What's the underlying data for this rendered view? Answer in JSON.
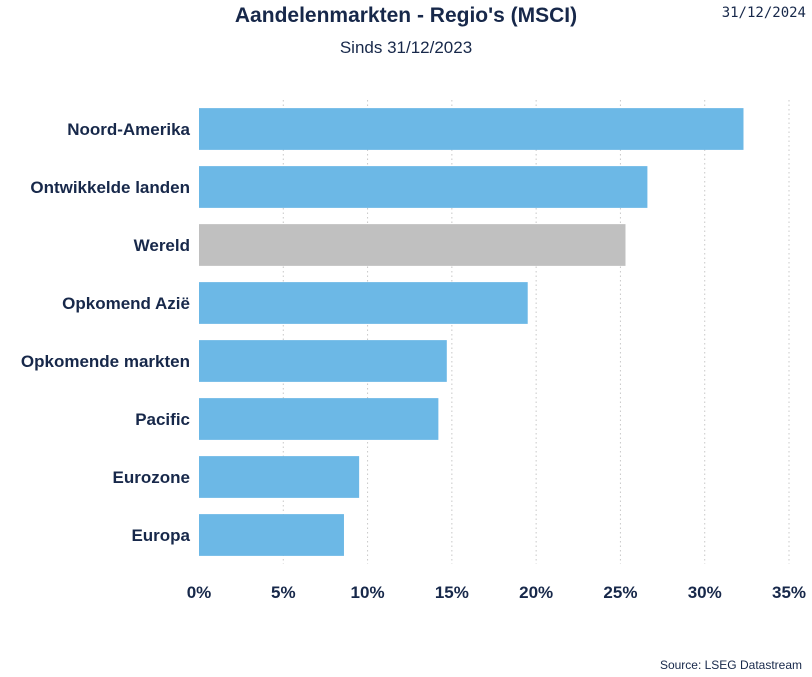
{
  "header": {
    "title": "Aandelenmarkten - Regio's (MSCI)",
    "subtitle": "Sinds 31/12/2023",
    "date": "31/12/2024"
  },
  "footer": {
    "source": "Source: LSEG Datastream"
  },
  "colors": {
    "bar": "#6cb8e6",
    "highlight_bar": "#c0c0c0",
    "text": "#17284a",
    "grid": "#c8c8c8"
  },
  "chart_data": {
    "type": "bar",
    "orientation": "horizontal",
    "title": "Aandelenmarkten - Regio's (MSCI)",
    "subtitle": "Sinds 31/12/2023",
    "categories": [
      "Noord-Amerika",
      "Ontwikkelde landen",
      "Wereld",
      "Opkomend Azië",
      "Opkomende markten",
      "Pacific",
      "Eurozone",
      "Europa"
    ],
    "values": [
      32.3,
      26.6,
      25.3,
      19.5,
      14.7,
      14.2,
      9.5,
      8.6
    ],
    "highlight": "Wereld",
    "xlim": [
      0,
      35
    ],
    "xticks": [
      0,
      5,
      10,
      15,
      20,
      25,
      30,
      35
    ],
    "xtick_labels": [
      "0%",
      "5%",
      "10%",
      "15%",
      "20%",
      "25%",
      "30%",
      "35%"
    ],
    "grid": "vertical dotted"
  }
}
